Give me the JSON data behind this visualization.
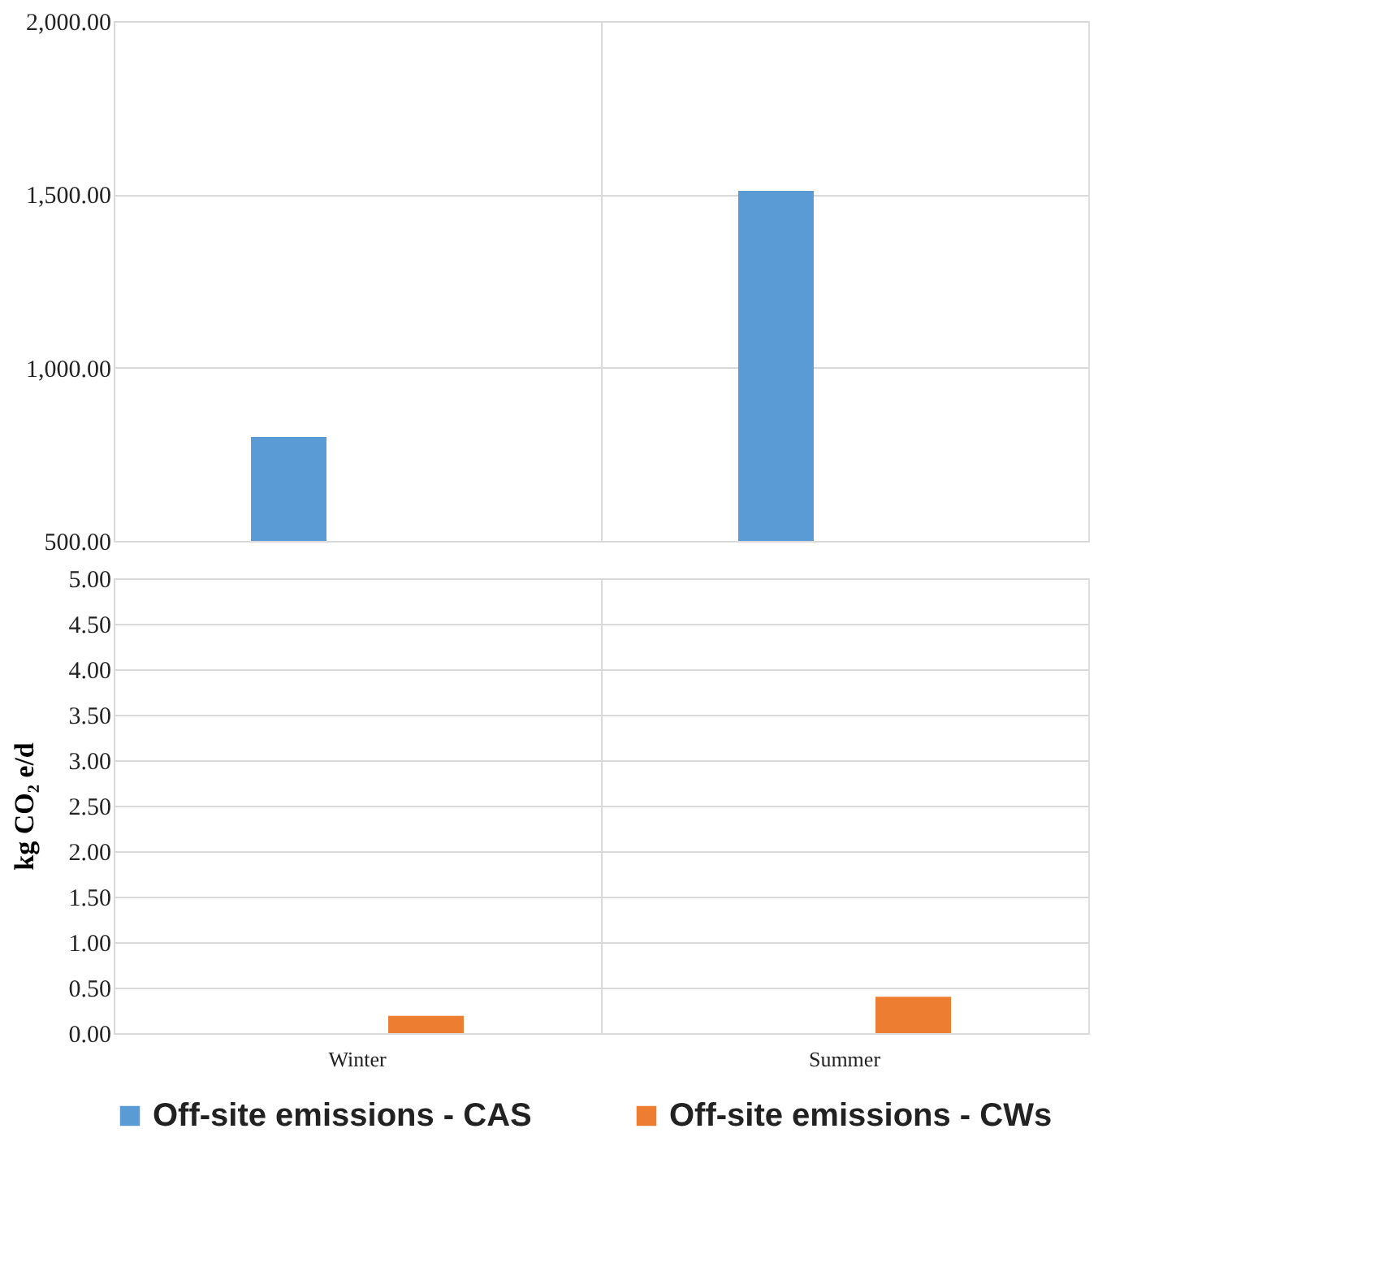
{
  "chart_data": [
    {
      "type": "bar",
      "categories": [
        null,
        null
      ],
      "series": [
        {
          "color": "#5b9bd5",
          "values": [
            800,
            1510
          ]
        },
        {
          "color": "#ed7d31",
          "values": [
            null,
            null
          ]
        }
      ],
      "ylim": [
        500,
        2000
      ],
      "yticks": [
        {
          "value": 500,
          "label": "500.00"
        },
        {
          "value": 1000,
          "label": "1,000.00"
        },
        {
          "value": 1500,
          "label": "1,500.00"
        },
        {
          "value": 2000,
          "label": "2,000.00"
        }
      ],
      "grid": true,
      "tick_labels": "y"
    },
    {
      "type": "bar",
      "categories": [
        "Winter",
        "Summer"
      ],
      "series": [
        {
          "name": "Off-site emissions - CAS",
          "color": "#5b9bd5",
          "values": [
            null,
            null
          ]
        },
        {
          "name": "Off-site emissions - CWs",
          "color": "#ed7d31",
          "values": [
            0.19,
            0.4
          ]
        }
      ],
      "ylabel": "kg CO₂ e/d",
      "ylim": [
        0,
        5
      ],
      "yticks": [
        {
          "value": 0,
          "label": "0.00"
        },
        {
          "value": 0.5,
          "label": "0.50"
        },
        {
          "value": 1,
          "label": "1.00"
        },
        {
          "value": 1.5,
          "label": "1.50"
        },
        {
          "value": 2,
          "label": "2.00"
        },
        {
          "value": 2.5,
          "label": "2.50"
        },
        {
          "value": 3,
          "label": "3.00"
        },
        {
          "value": 3.5,
          "label": "3.50"
        },
        {
          "value": 4,
          "label": "4.00"
        },
        {
          "value": 4.5,
          "label": "4.50"
        },
        {
          "value": 5,
          "label": "5.00"
        }
      ],
      "grid": true,
      "legend": "bottom"
    }
  ]
}
